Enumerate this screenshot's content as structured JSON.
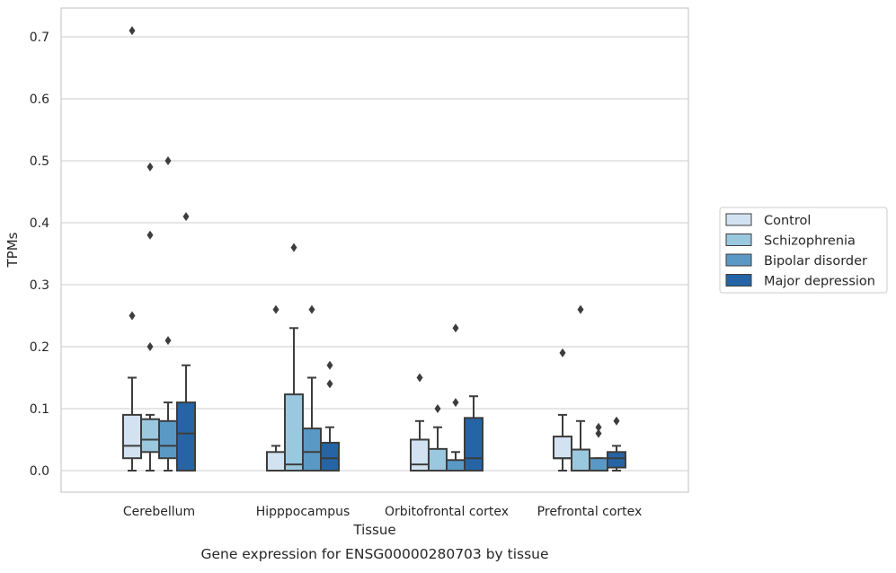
{
  "chart_data": {
    "type": "boxplot",
    "caption": "Gene expression for ENSG00000280703 by tissue",
    "xlabel": "Tissue",
    "ylabel": "TPMs",
    "ylim": [
      -0.035,
      0.745
    ],
    "yticks": [
      0.0,
      0.1,
      0.2,
      0.3,
      0.4,
      0.5,
      0.6,
      0.7
    ],
    "ytick_labels": [
      "0.0",
      "0.1",
      "0.2",
      "0.3",
      "0.4",
      "0.5",
      "0.6",
      "0.7"
    ],
    "grid": true,
    "legend_position": "right",
    "categories": [
      "Cerebellum",
      "Hipppocampus",
      "Orbitofrontal cortex",
      "Prefrontal cortex"
    ],
    "series": [
      {
        "name": "Control",
        "color": "#d2e2f1",
        "boxes": [
          {
            "whislo": 0.0,
            "q1": 0.02,
            "med": 0.04,
            "q3": 0.09,
            "whishi": 0.15,
            "fliers": [
              0.25,
              0.71
            ]
          },
          {
            "whislo": 0.0,
            "q1": 0.0,
            "med": 0.0,
            "q3": 0.03,
            "whishi": 0.04,
            "fliers": [
              0.26
            ]
          },
          {
            "whislo": 0.0,
            "q1": 0.0,
            "med": 0.01,
            "q3": 0.05,
            "whishi": 0.08,
            "fliers": [
              0.15
            ]
          },
          {
            "whislo": 0.0,
            "q1": 0.02,
            "med": 0.02,
            "q3": 0.055,
            "whishi": 0.09,
            "fliers": [
              0.19
            ]
          }
        ]
      },
      {
        "name": "Schizophrenia",
        "color": "#9ac8df",
        "boxes": [
          {
            "whislo": 0.0,
            "q1": 0.03,
            "med": 0.05,
            "q3": 0.083,
            "whishi": 0.09,
            "fliers": [
              0.2,
              0.38,
              0.49
            ]
          },
          {
            "whislo": 0.0,
            "q1": 0.0,
            "med": 0.01,
            "q3": 0.123,
            "whishi": 0.23,
            "fliers": [
              0.36
            ]
          },
          {
            "whislo": 0.0,
            "q1": 0.0,
            "med": 0.0,
            "q3": 0.035,
            "whishi": 0.07,
            "fliers": [
              0.1
            ]
          },
          {
            "whislo": 0.0,
            "q1": 0.0,
            "med": 0.0,
            "q3": 0.034,
            "whishi": 0.08,
            "fliers": [
              0.26
            ]
          }
        ]
      },
      {
        "name": "Bipolar disorder",
        "color": "#5a99c6",
        "boxes": [
          {
            "whislo": 0.0,
            "q1": 0.02,
            "med": 0.04,
            "q3": 0.08,
            "whishi": 0.11,
            "fliers": [
              0.21,
              0.5
            ]
          },
          {
            "whislo": 0.0,
            "q1": 0.0,
            "med": 0.03,
            "q3": 0.068,
            "whishi": 0.15,
            "fliers": [
              0.26
            ]
          },
          {
            "whislo": 0.0,
            "q1": 0.0,
            "med": 0.0,
            "q3": 0.017,
            "whishi": 0.03,
            "fliers": [
              0.11,
              0.23
            ]
          },
          {
            "whislo": 0.0,
            "q1": 0.0,
            "med": 0.0,
            "q3": 0.02,
            "whishi": 0.02,
            "fliers": [
              0.06,
              0.07
            ]
          }
        ]
      },
      {
        "name": "Major depression",
        "color": "#2565a6",
        "boxes": [
          {
            "whislo": 0.0,
            "q1": 0.0,
            "med": 0.06,
            "q3": 0.11,
            "whishi": 0.17,
            "fliers": [
              0.41
            ]
          },
          {
            "whislo": 0.0,
            "q1": 0.0,
            "med": 0.02,
            "q3": 0.045,
            "whishi": 0.07,
            "fliers": [
              0.14,
              0.17
            ]
          },
          {
            "whislo": 0.0,
            "q1": 0.0,
            "med": 0.02,
            "q3": 0.085,
            "whishi": 0.12,
            "fliers": []
          },
          {
            "whislo": 0.0,
            "q1": 0.005,
            "med": 0.02,
            "q3": 0.03,
            "whishi": 0.04,
            "fliers": [
              0.08
            ]
          }
        ]
      }
    ]
  }
}
